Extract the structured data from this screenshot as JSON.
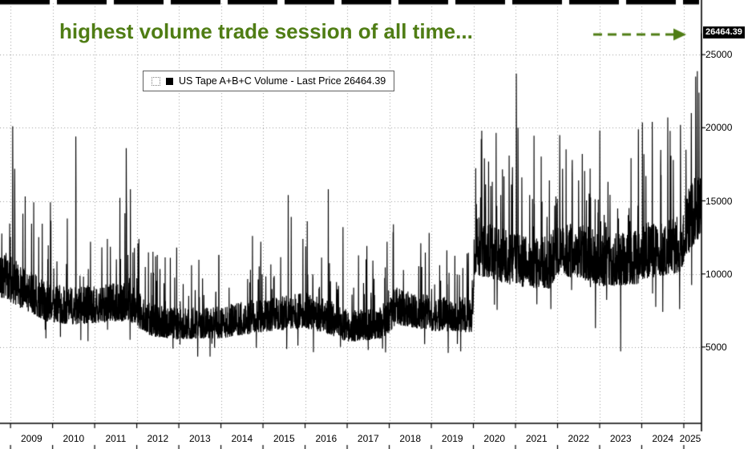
{
  "chart_data": {
    "type": "line",
    "title": "",
    "series_name": "US Tape A+B+C Volume",
    "annotation": {
      "text": "highest volume trade session of all time...",
      "color": "#4f7d14",
      "arrow": "dashed-right"
    },
    "legend": {
      "label": "US Tape A+B+C Volume - Last Price 26464.39"
    },
    "last_price": 26464.39,
    "last_price_label": "26464.39",
    "x_years": [
      2009,
      2010,
      2011,
      2012,
      2013,
      2014,
      2015,
      2016,
      2017,
      2018,
      2019,
      2020,
      2021,
      2022,
      2023,
      2024,
      2025
    ],
    "yticks": [
      5000,
      10000,
      15000,
      20000,
      25000
    ],
    "xlim": [
      2008.75,
      2025.42
    ],
    "ylim": [
      0,
      28300
    ],
    "grid": "dotted",
    "legend_position": "top-left",
    "line_color": "#000000",
    "seed": 42,
    "base_points": [
      [
        2008.75,
        9800
      ],
      [
        2009.3,
        8800
      ],
      [
        2009.9,
        7800
      ],
      [
        2010.5,
        7600
      ],
      [
        2011.0,
        7700
      ],
      [
        2011.8,
        7900
      ],
      [
        2012.3,
        6700
      ],
      [
        2013.0,
        6400
      ],
      [
        2014.0,
        6500
      ],
      [
        2015.0,
        7000
      ],
      [
        2016.0,
        7300
      ],
      [
        2016.6,
        6800
      ],
      [
        2017.0,
        6200
      ],
      [
        2017.9,
        6500
      ],
      [
        2018.15,
        7600
      ],
      [
        2019.0,
        7100
      ],
      [
        2019.97,
        7000
      ],
      [
        2020.03,
        11600
      ],
      [
        2020.6,
        11000
      ],
      [
        2021.1,
        10600
      ],
      [
        2021.8,
        10400
      ],
      [
        2022.0,
        11600
      ],
      [
        2022.8,
        11000
      ],
      [
        2023.0,
        10600
      ],
      [
        2023.9,
        10800
      ],
      [
        2024.0,
        11200
      ],
      [
        2024.9,
        11700
      ],
      [
        2025.05,
        12900
      ],
      [
        2025.42,
        14800
      ]
    ],
    "spike_events": [
      [
        2009.05,
        20100
      ],
      [
        2009.1,
        17200
      ],
      [
        2009.35,
        15300
      ],
      [
        2009.55,
        14900
      ],
      [
        2009.95,
        14900
      ],
      [
        2010.35,
        13800
      ],
      [
        2010.55,
        19400
      ],
      [
        2010.9,
        12200
      ],
      [
        2011.3,
        12400
      ],
      [
        2011.6,
        15200
      ],
      [
        2011.75,
        18600
      ],
      [
        2011.85,
        15800
      ],
      [
        2012.05,
        12400
      ],
      [
        2012.45,
        11200
      ],
      [
        2012.95,
        11800
      ],
      [
        2013.3,
        10600
      ],
      [
        2013.95,
        11300
      ],
      [
        2014.75,
        12600
      ],
      [
        2014.95,
        12200
      ],
      [
        2015.6,
        15400
      ],
      [
        2015.67,
        13900
      ],
      [
        2015.95,
        12400
      ],
      [
        2016.05,
        13600
      ],
      [
        2016.55,
        15800
      ],
      [
        2016.9,
        13200
      ],
      [
        2017.45,
        11000
      ],
      [
        2017.95,
        12200
      ],
      [
        2018.1,
        13400
      ],
      [
        2018.75,
        12100
      ],
      [
        2018.95,
        12800
      ],
      [
        2019.2,
        10600
      ],
      [
        2019.75,
        10400
      ],
      [
        2020.2,
        19800
      ],
      [
        2020.26,
        17900
      ],
      [
        2020.45,
        16300
      ],
      [
        2020.65,
        15400
      ],
      [
        2020.85,
        18100
      ],
      [
        2020.93,
        17300
      ],
      [
        2021.02,
        23700
      ],
      [
        2021.06,
        20000
      ],
      [
        2021.15,
        16600
      ],
      [
        2021.45,
        14800
      ],
      [
        2021.75,
        13900
      ],
      [
        2021.96,
        15300
      ],
      [
        2022.05,
        19500
      ],
      [
        2022.12,
        17200
      ],
      [
        2022.35,
        17800
      ],
      [
        2022.5,
        16400
      ],
      [
        2022.75,
        15500
      ],
      [
        2022.96,
        14200
      ],
      [
        2023.2,
        16300
      ],
      [
        2023.45,
        13800
      ],
      [
        2023.7,
        14500
      ],
      [
        2023.92,
        19900
      ],
      [
        2024.05,
        18200
      ],
      [
        2024.25,
        20400
      ],
      [
        2024.45,
        17400
      ],
      [
        2024.62,
        20700
      ],
      [
        2024.75,
        17800
      ],
      [
        2024.92,
        20200
      ],
      [
        2025.05,
        18500
      ],
      [
        2025.18,
        21000
      ],
      [
        2025.28,
        23500
      ],
      [
        2025.36,
        22400
      ],
      [
        2025.42,
        26464.39
      ]
    ],
    "dip_events": [
      [
        2009.84,
        5600
      ],
      [
        2010.84,
        5400
      ],
      [
        2011.84,
        5500
      ],
      [
        2012.86,
        4900
      ],
      [
        2013.85,
        4950
      ],
      [
        2014.84,
        4950
      ],
      [
        2015.83,
        5100
      ],
      [
        2016.2,
        4650
      ],
      [
        2016.84,
        5000
      ],
      [
        2017.5,
        4800
      ],
      [
        2017.84,
        4900
      ],
      [
        2018.84,
        5200
      ],
      [
        2019.4,
        4600
      ],
      [
        2019.7,
        4700
      ],
      [
        2020.5,
        7900
      ],
      [
        2021.84,
        7600
      ],
      [
        2022.9,
        6300
      ],
      [
        2023.5,
        4700
      ],
      [
        2024.5,
        7400
      ],
      [
        2024.9,
        7600
      ]
    ],
    "noise": {
      "low": 0.86,
      "range": 0.34,
      "spike_prob": 0.05,
      "spike_gain": 0.5,
      "dip_prob": 0.005,
      "dip_factor": 0.78
    }
  }
}
